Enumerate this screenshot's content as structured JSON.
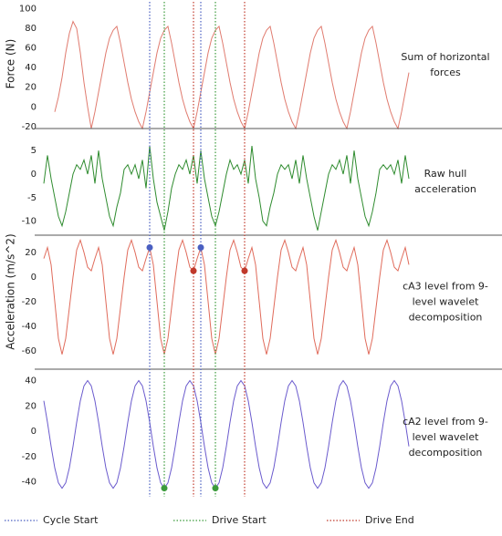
{
  "chart_data": {
    "type": "line",
    "xlim": [
      0,
      100
    ],
    "x": [
      0,
      1,
      2,
      3,
      4,
      5,
      6,
      7,
      8,
      9,
      10,
      11,
      12,
      13,
      14,
      15,
      16,
      17,
      18,
      19,
      20,
      21,
      22,
      23,
      24,
      25,
      26,
      27,
      28,
      29,
      30,
      31,
      32,
      33,
      34,
      35,
      36,
      37,
      38,
      39,
      40,
      41,
      42,
      43,
      44,
      45,
      46,
      47,
      48,
      49,
      50,
      51,
      52,
      53,
      54,
      55,
      56,
      57,
      58,
      59,
      60,
      61,
      62,
      63,
      64,
      65,
      66,
      67,
      68,
      69,
      70,
      71,
      72,
      73,
      74,
      75,
      76,
      77,
      78,
      79,
      80,
      81,
      82,
      83,
      84,
      85,
      86,
      87,
      88,
      89,
      90,
      91,
      92,
      93,
      94,
      95,
      96,
      97,
      98,
      99,
      100
    ],
    "panels": [
      {
        "ylabel": "Force (N)",
        "label": [
          "Sum of horizontal",
          "forces"
        ],
        "ylim": [
          -22,
          107
        ],
        "yticks": [
          100,
          80,
          60,
          40,
          20,
          0,
          -20
        ],
        "series": [
          {
            "color": "#e07b6f",
            "values": [
              null,
              null,
              null,
              -5,
              10,
              30,
              55,
              75,
              87,
              80,
              55,
              25,
              0,
              -22,
              -5,
              15,
              35,
              55,
              70,
              78,
              82,
              65,
              45,
              25,
              8,
              -5,
              -15,
              -22,
              -5,
              15,
              35,
              55,
              70,
              78,
              82,
              65,
              45,
              25,
              8,
              -5,
              -15,
              -22,
              -5,
              15,
              35,
              55,
              70,
              78,
              82,
              65,
              45,
              25,
              8,
              -5,
              -15,
              -22,
              -5,
              15,
              35,
              55,
              70,
              78,
              82,
              65,
              45,
              25,
              8,
              -5,
              -15,
              -22,
              -5,
              15,
              35,
              55,
              70,
              78,
              82,
              65,
              45,
              25,
              8,
              -5,
              -15,
              -22,
              -5,
              15,
              35,
              55,
              70,
              78,
              82,
              65,
              45,
              25,
              8,
              -5,
              -15,
              -22,
              -5,
              15,
              35
            ]
          }
        ],
        "points": []
      },
      {
        "label": [
          "Raw hull",
          "acceleration"
        ],
        "ylim": [
          -13,
          9.7
        ],
        "yticks": [
          5,
          0,
          -5,
          -10
        ],
        "series": [
          {
            "color": "#2e8b2e",
            "values": [
              -2,
              4,
              -1,
              -5,
              -9,
              -11,
              -8,
              -4,
              0,
              2,
              1,
              3,
              0,
              4,
              -2,
              5,
              -1,
              -5,
              -9,
              -11,
              -7,
              -4,
              1,
              2,
              0,
              2,
              -1,
              3,
              -3,
              6,
              -1,
              -6,
              -9,
              -12,
              -8,
              -3,
              0,
              2,
              1,
              3,
              0,
              4,
              -2,
              5,
              -1,
              -5,
              -9,
              -11,
              -8,
              -4,
              0,
              3,
              1,
              2,
              0,
              3,
              -2,
              6,
              -1,
              -5,
              -10,
              -11,
              -7,
              -4,
              0,
              2,
              1,
              2,
              -1,
              3,
              -2,
              4,
              -1,
              -5,
              -9,
              -12,
              -8,
              -4,
              0,
              2,
              1,
              3,
              0,
              4,
              -2,
              5,
              -1,
              -5,
              -9,
              -11,
              -8,
              -4,
              1,
              2,
              1,
              2,
              0,
              3,
              -2,
              4,
              -1
            ]
          }
        ],
        "points": []
      },
      {
        "ylabel": "Acceleration (m/s^2)",
        "label": [
          "cA3 level from 9-",
          "level wavelet",
          "decomposition"
        ],
        "ylim": [
          -75,
          34
        ],
        "yticks": [
          20,
          0,
          -20,
          -40,
          -60
        ],
        "series": [
          {
            "color": "#e06b5b",
            "values": [
              15,
              24,
              10,
              -20,
              -50,
              -63,
              -50,
              -25,
              0,
              22,
              30,
              20,
              8,
              5,
              15,
              24,
              10,
              -20,
              -50,
              -63,
              -50,
              -25,
              0,
              22,
              30,
              20,
              8,
              5,
              15,
              24,
              10,
              -20,
              -50,
              -63,
              -50,
              -25,
              0,
              22,
              30,
              20,
              8,
              5,
              15,
              24,
              10,
              -20,
              -50,
              -63,
              -50,
              -25,
              0,
              22,
              30,
              20,
              8,
              5,
              15,
              24,
              10,
              -20,
              -50,
              -63,
              -50,
              -25,
              0,
              22,
              30,
              20,
              8,
              5,
              15,
              24,
              10,
              -20,
              -50,
              -63,
              -50,
              -25,
              0,
              22,
              30,
              20,
              8,
              5,
              15,
              24,
              10,
              -20,
              -50,
              -63,
              -50,
              -25,
              0,
              22,
              30,
              20,
              8,
              5,
              15,
              24,
              10
            ]
          }
        ],
        "points": [
          {
            "color": "#4a5fc1",
            "x": 29,
            "y": 24
          },
          {
            "color": "#4a5fc1",
            "x": 43,
            "y": 24
          },
          {
            "color": "#c0392b",
            "x": 41,
            "y": 5
          },
          {
            "color": "#c0392b",
            "x": 55,
            "y": 5
          }
        ]
      },
      {
        "label": [
          "cA2 level from 9-",
          "level wavelet",
          "decomposition"
        ],
        "ylim": [
          -59,
          49
        ],
        "yticks": [
          40,
          20,
          0,
          -20,
          -40
        ],
        "series": [
          {
            "color": "#6a5acd",
            "values": [
              24,
              7,
              -12,
              -29,
              -40.8,
              -45,
              -40.8,
              -29,
              -12,
              7,
              24,
              35.8,
              40,
              35.8,
              24,
              7,
              -12,
              -29,
              -40.8,
              -45,
              -40.8,
              -29,
              -12,
              7,
              24,
              35.8,
              40,
              35.8,
              24,
              7,
              -12,
              -29,
              -40.8,
              -45,
              -40.8,
              -29,
              -12,
              7,
              24,
              35.8,
              40,
              35.8,
              24,
              7,
              -12,
              -29,
              -40.8,
              -45,
              -40.8,
              -29,
              -12,
              7,
              24,
              35.8,
              40,
              35.8,
              24,
              7,
              -12,
              -29,
              -40.8,
              -45,
              -40.8,
              -29,
              -12,
              7,
              24,
              35.8,
              40,
              35.8,
              24,
              7,
              -12,
              -29,
              -40.8,
              -45,
              -40.8,
              -29,
              -12,
              7,
              24,
              35.8,
              40,
              35.8,
              24,
              7,
              -12,
              -29,
              -40.8,
              -45,
              -40.8,
              -29,
              -12,
              7,
              24,
              35.8,
              40,
              35.8,
              24,
              7,
              -12
            ]
          }
        ],
        "points": [
          {
            "color": "#3a9a3a",
            "x": 33,
            "y": -45
          },
          {
            "color": "#3a9a3a",
            "x": 47,
            "y": -45
          }
        ]
      }
    ],
    "markers": [
      {
        "name": "Cycle Start",
        "color": "#4a5fc1",
        "x": [
          29,
          43
        ]
      },
      {
        "name": "Drive Start",
        "color": "#3a9a3a",
        "x": [
          33,
          47
        ]
      },
      {
        "name": "Drive End",
        "color": "#c0392b",
        "x": [
          41,
          55
        ]
      }
    ]
  }
}
